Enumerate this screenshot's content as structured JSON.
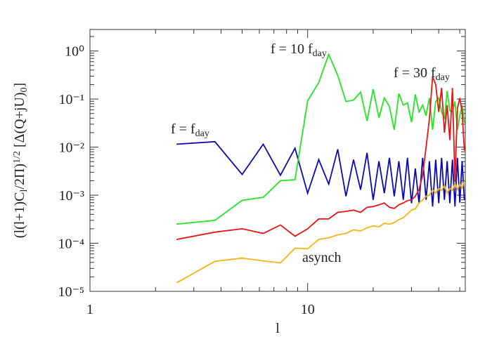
{
  "chart_data": {
    "type": "line",
    "xlabel": "l",
    "ylabel": [
      "(l(l+1)C",
      "l",
      "/2Π)",
      "1/2",
      " [Δ(Q+jU)",
      "0",
      "]"
    ],
    "log_x": true,
    "log_y": true,
    "xlim": [
      1,
      53
    ],
    "ylim": [
      1e-05,
      2.8
    ],
    "xticks": [
      1,
      10
    ],
    "yticks": [
      {
        "value": 1e-05,
        "label": "10⁻⁵"
      },
      {
        "value": 0.0001,
        "label": "10⁻⁴"
      },
      {
        "value": 0.001,
        "label": "10⁻³"
      },
      {
        "value": 0.01,
        "label": "10⁻²"
      },
      {
        "value": 0.1,
        "label": "10⁻¹"
      },
      {
        "value": 1,
        "label": "10⁰"
      }
    ],
    "x": [
      2.5,
      3.75,
      5,
      6.25,
      7.5,
      8.75,
      10,
      11.25,
      12.5,
      13.75,
      15,
      16.25,
      17.5,
      18.75,
      20,
      21.25,
      22.5,
      23.75,
      25,
      26.25,
      27.5,
      28.75,
      30,
      31.25,
      32.5,
      33.75,
      35,
      36.25,
      37.5,
      38.75,
      40,
      41.25,
      42.5,
      43.75,
      45,
      46.25,
      47.5,
      48.75,
      50,
      51.25,
      52.5
    ],
    "series": [
      {
        "label": [
          "f = f",
          "day"
        ],
        "color": "#0a0ab4",
        "values": [
          0.0115,
          0.013,
          0.0027,
          0.0115,
          0.0026,
          0.0095,
          0.0011,
          0.0055,
          0.0017,
          0.009,
          0.00095,
          0.0055,
          0.0013,
          0.0076,
          0.0008,
          0.0051,
          0.0011,
          0.006,
          0.00095,
          0.0051,
          0.0008,
          0.006,
          0.00068,
          0.0036,
          0.00068,
          0.006,
          0.0008,
          0.0051,
          0.00058,
          0.0055,
          0.00068,
          0.006,
          0.0008,
          0.0051,
          0.00068,
          0.0055,
          0.00058,
          0.006,
          0.0007,
          0.0051,
          0.0008
        ]
      },
      {
        "label": [
          "f = 10 f",
          "day"
        ],
        "color": "#22e622",
        "values": [
          0.00025,
          0.0003,
          0.00078,
          0.0009,
          0.002,
          0.0021,
          0.092,
          0.22,
          0.85,
          0.31,
          0.089,
          0.095,
          0.14,
          0.035,
          0.16,
          0.041,
          0.105,
          0.07,
          0.023,
          0.13,
          0.075,
          0.083,
          0.033,
          0.125,
          0.054,
          0.075,
          0.045,
          0.105,
          0.023,
          0.089,
          0.105,
          0.054,
          0.038,
          0.147,
          0.057,
          0.054,
          0.089,
          0.023,
          0.045,
          0.075,
          0.032
        ]
      },
      {
        "label": [
          "f = 30 f",
          "day"
        ],
        "color": "#e61414",
        "values": [
          0.00012,
          0.00017,
          0.0002,
          0.00016,
          0.00024,
          0.00014,
          0.0002,
          0.00032,
          0.00032,
          0.00044,
          0.00046,
          0.00049,
          0.00044,
          0.00056,
          0.00058,
          0.00063,
          0.00069,
          0.00056,
          0.00053,
          0.00063,
          0.00069,
          0.00077,
          0.0008,
          0.00095,
          0.0013,
          0.0026,
          0.01,
          0.038,
          0.29,
          0.2,
          0.054,
          0.17,
          0.02,
          0.075,
          0.014,
          0.17,
          0.0019,
          0.064,
          0.105,
          0.054,
          0.0085
        ]
      },
      {
        "label": [
          "asynch"
        ],
        "color": "#f5b414",
        "values": [
          1.5e-05,
          4.2e-05,
          4.9e-05,
          4.3e-05,
          3.9e-05,
          7.9e-05,
          7.7e-05,
          0.00012,
          0.00013,
          0.00015,
          0.00016,
          0.00019,
          0.00018,
          0.00021,
          0.00023,
          0.00022,
          0.00026,
          0.00025,
          0.00027,
          0.00031,
          0.00034,
          0.00041,
          0.00049,
          0.00052,
          0.00069,
          0.0008,
          0.00095,
          0.001,
          0.0013,
          0.0011,
          0.0014,
          0.00125,
          0.0016,
          0.0011,
          0.0014,
          0.00125,
          0.00175,
          0.0013,
          0.00175,
          0.0014,
          0.002
        ]
      }
    ]
  }
}
